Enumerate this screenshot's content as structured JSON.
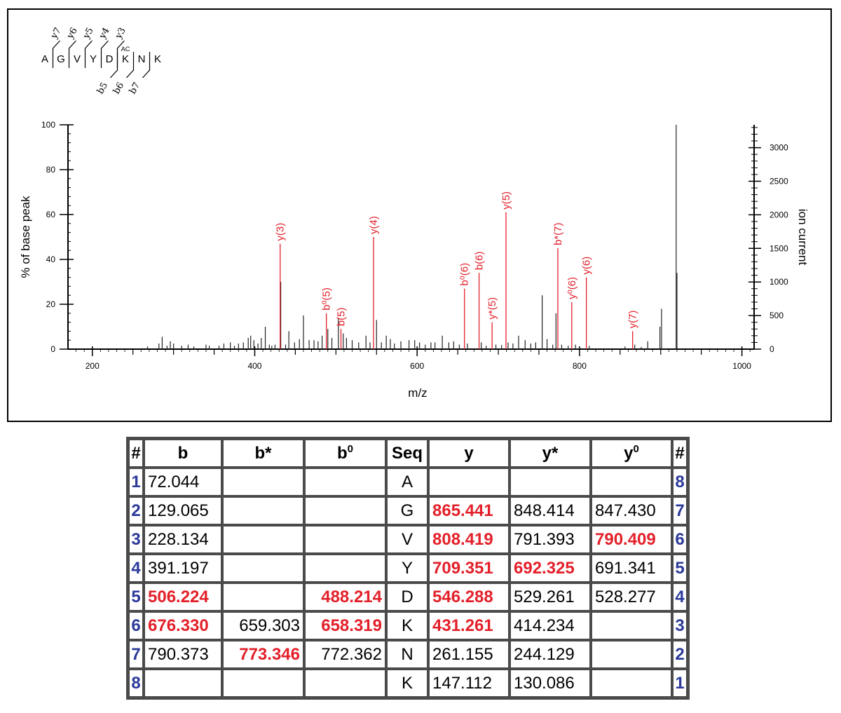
{
  "chart_data": {
    "type": "bar",
    "xlabel": "m/z",
    "ylabel_left": "% of base peak",
    "ylabel_right": "ion current",
    "xlim": [
      170,
      1015
    ],
    "ylim_left": [
      0,
      100
    ],
    "ylim_right": [
      0,
      3340
    ],
    "x_ticks": [
      200,
      400,
      600,
      800,
      1000
    ],
    "y_ticks_left": [
      0,
      20,
      40,
      60,
      80,
      100
    ],
    "y_ticks_right": [
      0,
      500,
      1000,
      1500,
      2000,
      2500,
      3000
    ],
    "sequence": {
      "residues": [
        "A",
        "G",
        "V",
        "Y",
        "D",
        "K",
        "N",
        "K"
      ],
      "modification": {
        "residue_index": 5,
        "label": "AC"
      },
      "y_labels": [
        "y7",
        "y6",
        "y5",
        "y4",
        "y3"
      ],
      "b_labels": [
        "b5",
        "b6",
        "b7"
      ]
    },
    "annotated_peaks": [
      {
        "label": "y(3)",
        "mz": 431.3,
        "intensity": 47,
        "color": "#e3202a"
      },
      {
        "label": "b⁰(5)",
        "mz": 488.2,
        "intensity": 16,
        "color": "#e3202a"
      },
      {
        "label": "b(5)",
        "mz": 506.2,
        "intensity": 9,
        "color": "#e3202a"
      },
      {
        "label": "y(4)",
        "mz": 546.3,
        "intensity": 50,
        "color": "#e3202a"
      },
      {
        "label": "b⁰(6)",
        "mz": 658.3,
        "intensity": 27,
        "color": "#e3202a"
      },
      {
        "label": "b(6)",
        "mz": 676.3,
        "intensity": 34,
        "color": "#e3202a"
      },
      {
        "label": "y*(5)",
        "mz": 692.3,
        "intensity": 12,
        "color": "#e3202a"
      },
      {
        "label": "y(5)",
        "mz": 709.4,
        "intensity": 61,
        "color": "#e3202a"
      },
      {
        "label": "b*(7)",
        "mz": 773.3,
        "intensity": 45,
        "color": "#e3202a"
      },
      {
        "label": "y⁰(6)",
        "mz": 790.4,
        "intensity": 21,
        "color": "#e3202a"
      },
      {
        "label": "y(6)",
        "mz": 808.4,
        "intensity": 32,
        "color": "#e3202a"
      },
      {
        "label": "y(7)",
        "mz": 865.4,
        "intensity": 8,
        "color": "#e3202a"
      }
    ],
    "unannotated_peaks": [
      [
        268,
        1.2
      ],
      [
        282,
        2.5
      ],
      [
        286,
        5.5
      ],
      [
        292,
        1.5
      ],
      [
        296,
        3.5
      ],
      [
        300,
        2.5
      ],
      [
        310,
        1.5
      ],
      [
        318,
        2
      ],
      [
        325,
        1.2
      ],
      [
        340,
        2
      ],
      [
        344,
        1.5
      ],
      [
        356,
        1.5
      ],
      [
        362,
        2.5
      ],
      [
        370,
        3
      ],
      [
        375,
        1.5
      ],
      [
        380,
        2.5
      ],
      [
        386,
        3
      ],
      [
        392,
        5
      ],
      [
        395,
        6
      ],
      [
        399,
        4
      ],
      [
        404,
        2.5
      ],
      [
        408,
        5
      ],
      [
        413,
        10
      ],
      [
        418,
        2
      ],
      [
        421,
        1.5
      ],
      [
        425,
        2
      ],
      [
        432,
        30
      ],
      [
        438,
        2
      ],
      [
        442,
        8
      ],
      [
        449,
        3
      ],
      [
        455,
        4.5
      ],
      [
        460,
        15
      ],
      [
        467,
        4
      ],
      [
        473,
        4
      ],
      [
        478,
        3.5
      ],
      [
        483,
        6
      ],
      [
        490,
        9
      ],
      [
        495,
        5
      ],
      [
        503,
        14
      ],
      [
        509,
        7
      ],
      [
        513,
        5
      ],
      [
        520,
        4
      ],
      [
        528,
        3
      ],
      [
        537,
        6
      ],
      [
        542,
        3
      ],
      [
        550,
        13
      ],
      [
        556,
        3
      ],
      [
        562,
        6
      ],
      [
        567,
        4.5
      ],
      [
        572,
        2.5
      ],
      [
        580,
        3.5
      ],
      [
        590,
        4
      ],
      [
        597,
        4
      ],
      [
        603,
        3
      ],
      [
        610,
        2
      ],
      [
        617,
        3
      ],
      [
        622,
        3
      ],
      [
        631,
        6
      ],
      [
        639,
        3
      ],
      [
        645,
        3.5
      ],
      [
        652,
        2
      ],
      [
        662,
        2.5
      ],
      [
        679,
        3
      ],
      [
        685,
        1.5
      ],
      [
        697,
        2
      ],
      [
        704,
        1.8
      ],
      [
        712,
        3
      ],
      [
        718,
        2.5
      ],
      [
        725,
        6
      ],
      [
        733,
        4
      ],
      [
        740,
        2.5
      ],
      [
        746,
        3
      ],
      [
        754,
        24
      ],
      [
        760,
        4.5
      ],
      [
        767,
        2
      ],
      [
        771,
        16
      ],
      [
        778,
        2
      ],
      [
        786,
        1.5
      ],
      [
        795,
        2
      ],
      [
        812,
        1.5
      ],
      [
        856,
        1.2
      ],
      [
        868,
        2
      ],
      [
        876,
        1
      ],
      [
        884,
        3.5
      ],
      [
        899,
        10
      ],
      [
        901,
        18
      ],
      [
        919,
        100
      ],
      [
        920,
        34
      ]
    ]
  },
  "table": {
    "headers": {
      "num": "#",
      "b": "b",
      "b_star": "b*",
      "b_zero_base": "b",
      "zero_sup": "0",
      "seq": "Seq",
      "y": "y",
      "y_star": "y*",
      "y_zero_base": "y",
      "num_right": "#"
    },
    "highlight_color": "#e3202a",
    "rows": [
      {
        "n": "1",
        "b": "72.044",
        "bs": "",
        "b0": "",
        "seq": "A",
        "y": "",
        "ys": "",
        "y0": "",
        "m": "8",
        "hl": []
      },
      {
        "n": "2",
        "b": "129.065",
        "bs": "",
        "b0": "",
        "seq": "G",
        "y": "865.441",
        "ys": "848.414",
        "y0": "847.430",
        "m": "7",
        "hl": [
          "y"
        ]
      },
      {
        "n": "3",
        "b": "228.134",
        "bs": "",
        "b0": "",
        "seq": "V",
        "y": "808.419",
        "ys": "791.393",
        "y0": "790.409",
        "m": "6",
        "hl": [
          "y",
          "y0"
        ]
      },
      {
        "n": "4",
        "b": "391.197",
        "bs": "",
        "b0": "",
        "seq": "Y",
        "y": "709.351",
        "ys": "692.325",
        "y0": "691.341",
        "m": "5",
        "hl": [
          "y",
          "ys"
        ]
      },
      {
        "n": "5",
        "b": "506.224",
        "bs": "",
        "b0": "488.214",
        "seq": "D",
        "y": "546.288",
        "ys": "529.261",
        "y0": "528.277",
        "m": "4",
        "hl": [
          "b",
          "b0",
          "y"
        ]
      },
      {
        "n": "6",
        "b": "676.330",
        "bs": "659.303",
        "b0": "658.319",
        "seq": "K",
        "y": "431.261",
        "ys": "414.234",
        "y0": "",
        "m": "3",
        "hl": [
          "b",
          "b0",
          "y"
        ]
      },
      {
        "n": "7",
        "b": "790.373",
        "bs": "773.346",
        "b0": "772.362",
        "seq": "N",
        "y": "261.155",
        "ys": "244.129",
        "y0": "",
        "m": "2",
        "hl": [
          "bs"
        ]
      },
      {
        "n": "8",
        "b": "",
        "bs": "",
        "b0": "",
        "seq": "K",
        "y": "147.112",
        "ys": "130.086",
        "y0": "",
        "m": "1",
        "hl": []
      }
    ]
  }
}
